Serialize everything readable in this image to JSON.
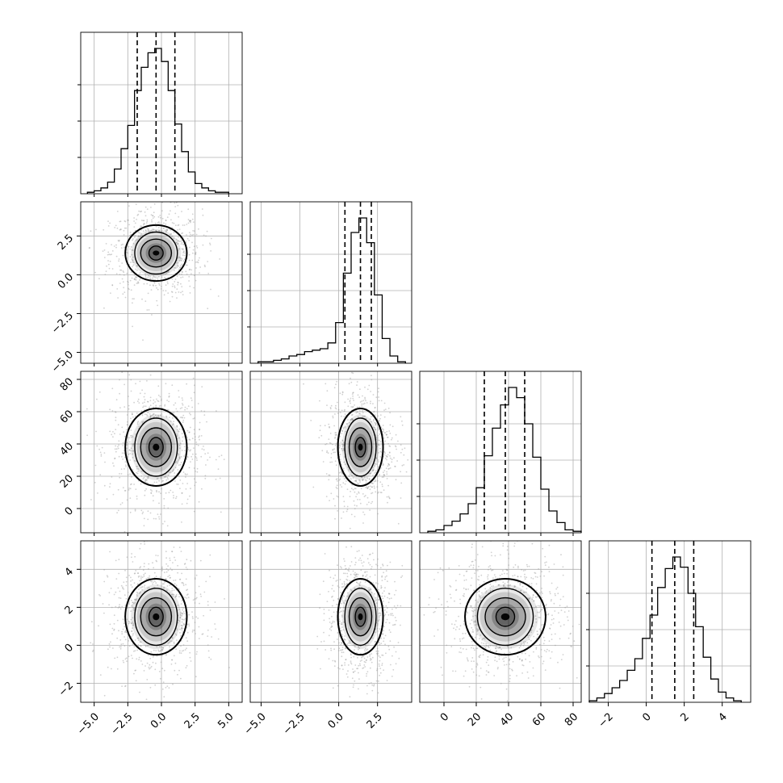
{
  "chart_data": {
    "type": "corner",
    "title": "",
    "parameters": [
      {
        "name": "",
        "range": [
          -6.0,
          6.0
        ],
        "ticks": [
          "−5.0",
          "−2.5",
          "0.0",
          "2.5",
          "5.0"
        ],
        "tick_values": [
          -5.0,
          -2.5,
          0.0,
          2.5,
          5.0
        ],
        "quantiles": [
          -1.8,
          -0.4,
          1.0
        ],
        "histogram": {
          "bin_edges": [
            -5.5,
            -5.0,
            -4.5,
            -4.0,
            -3.5,
            -3.0,
            -2.5,
            -2.0,
            -1.5,
            -1.0,
            -0.5,
            0.0,
            0.5,
            1.0,
            1.5,
            2.0,
            2.5,
            3.0,
            3.5,
            4.0,
            4.5,
            5.0
          ],
          "counts": [
            0.01,
            0.02,
            0.04,
            0.08,
            0.17,
            0.31,
            0.47,
            0.71,
            0.87,
            0.97,
            1.0,
            0.91,
            0.71,
            0.48,
            0.29,
            0.15,
            0.07,
            0.04,
            0.02,
            0.01,
            0.01
          ]
        }
      },
      {
        "name": "",
        "range": [
          -5.7,
          4.7
        ],
        "ticks": [
          "−5.0",
          "−2.5",
          "0.0",
          "2.5"
        ],
        "tick_values": [
          -5.0,
          -2.5,
          0.0,
          2.5
        ],
        "quantiles": [
          0.4,
          1.4,
          2.1
        ],
        "histogram": {
          "bin_edges": [
            -5.2,
            -4.7,
            -4.2,
            -3.7,
            -3.2,
            -2.7,
            -2.2,
            -1.7,
            -1.2,
            -0.7,
            -0.2,
            0.3,
            0.8,
            1.3,
            1.8,
            2.3,
            2.8,
            3.3,
            3.8,
            4.3
          ],
          "counts": [
            0.01,
            0.01,
            0.02,
            0.03,
            0.05,
            0.06,
            0.08,
            0.09,
            0.1,
            0.14,
            0.28,
            0.62,
            0.9,
            1.0,
            0.83,
            0.47,
            0.17,
            0.05,
            0.01
          ]
        }
      },
      {
        "name": "",
        "range": [
          -15,
          85
        ],
        "ticks": [
          "0",
          "20",
          "40",
          "60",
          "80"
        ],
        "tick_values": [
          0,
          20,
          40,
          60,
          80
        ],
        "quantiles": [
          25,
          38,
          50
        ],
        "histogram": {
          "bin_edges": [
            -10,
            -5,
            0,
            5,
            10,
            15,
            20,
            25,
            30,
            35,
            40,
            45,
            50,
            55,
            60,
            65,
            70,
            75,
            80,
            85
          ],
          "counts": [
            0.01,
            0.02,
            0.05,
            0.08,
            0.13,
            0.2,
            0.31,
            0.53,
            0.72,
            0.88,
            1.0,
            0.93,
            0.75,
            0.52,
            0.3,
            0.15,
            0.07,
            0.02,
            0.01
          ]
        }
      },
      {
        "name": "",
        "range": [
          -3.0,
          5.5
        ],
        "ticks": [
          "−2",
          "0",
          "2",
          "4"
        ],
        "tick_values": [
          -2,
          0,
          2,
          4
        ],
        "quantiles": [
          0.3,
          1.5,
          2.5
        ],
        "histogram": {
          "bin_edges": [
            -3.0,
            -2.6,
            -2.2,
            -1.8,
            -1.4,
            -1.0,
            -0.6,
            -0.2,
            0.2,
            0.6,
            1.0,
            1.4,
            1.8,
            2.2,
            2.6,
            3.0,
            3.4,
            3.8,
            4.2,
            4.6,
            5.0
          ],
          "counts": [
            0.01,
            0.03,
            0.06,
            0.1,
            0.15,
            0.22,
            0.3,
            0.44,
            0.6,
            0.79,
            0.92,
            1.0,
            0.93,
            0.75,
            0.52,
            0.31,
            0.16,
            0.07,
            0.03,
            0.01
          ]
        }
      }
    ],
    "pairs": [
      {
        "x_param": 0,
        "y_param": 1,
        "mean": [
          -0.4,
          1.4
        ],
        "sd": [
          1.1,
          0.9
        ]
      },
      {
        "x_param": 0,
        "y_param": 2,
        "mean": [
          -0.4,
          38
        ],
        "sd": [
          1.1,
          12
        ]
      },
      {
        "x_param": 1,
        "y_param": 2,
        "mean": [
          1.4,
          38
        ],
        "sd": [
          0.7,
          12
        ]
      },
      {
        "x_param": 0,
        "y_param": 3,
        "mean": [
          -0.4,
          1.5
        ],
        "sd": [
          1.1,
          1.0
        ]
      },
      {
        "x_param": 1,
        "y_param": 3,
        "mean": [
          1.4,
          1.5
        ],
        "sd": [
          0.7,
          1.0
        ]
      },
      {
        "x_param": 2,
        "y_param": 3,
        "mean": [
          38,
          1.5
        ],
        "sd": [
          12,
          1.0
        ]
      }
    ],
    "contour_levels_sigma": [
      0.5,
      1.0,
      1.5,
      2.0
    ],
    "grid": true,
    "colors": {
      "line": "#000000",
      "grid": "#b0b0b0",
      "scatter": "#9a9a9a",
      "density": "#000000",
      "background": "#ffffff"
    }
  }
}
